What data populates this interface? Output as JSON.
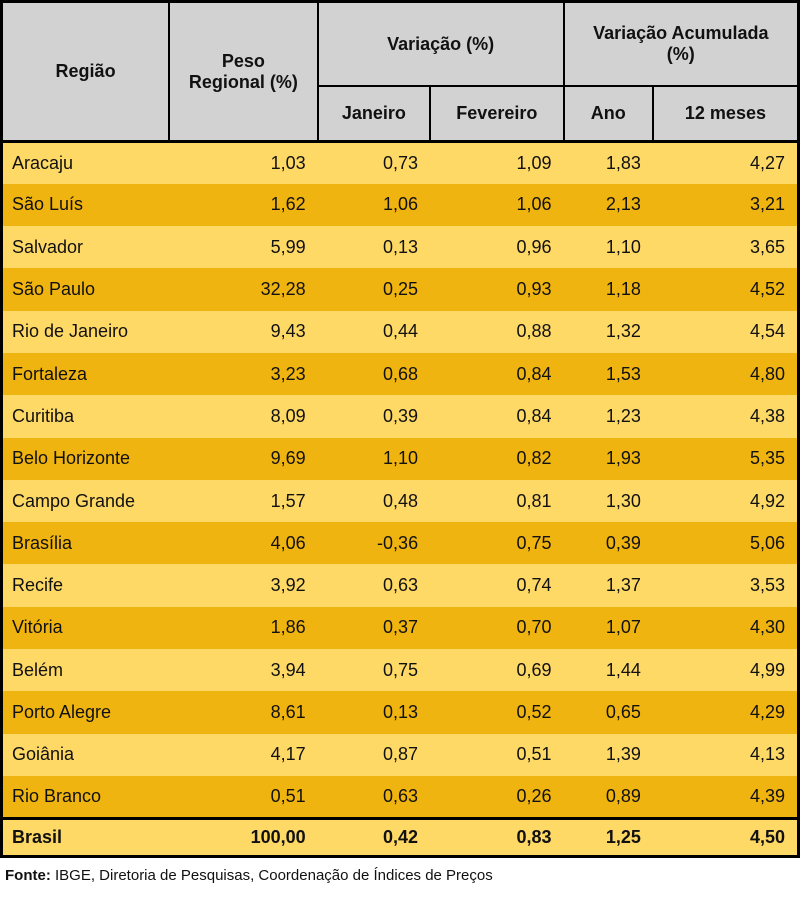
{
  "table": {
    "header": {
      "region": "Região",
      "weight": "Peso\nRegional (%)",
      "variation_group": "Variação (%)",
      "accumulated_group": "Variação Acumulada\n(%)",
      "sub": [
        "Janeiro",
        "Fevereiro",
        "Ano",
        "12 meses"
      ]
    },
    "rows": [
      {
        "name": "Aracaju",
        "values": [
          "1,03",
          "0,73",
          "1,09",
          "1,83",
          "4,27"
        ]
      },
      {
        "name": "São Luís",
        "values": [
          "1,62",
          "1,06",
          "1,06",
          "2,13",
          "3,21"
        ]
      },
      {
        "name": "Salvador",
        "values": [
          "5,99",
          "0,13",
          "0,96",
          "1,10",
          "3,65"
        ]
      },
      {
        "name": "São Paulo",
        "values": [
          "32,28",
          "0,25",
          "0,93",
          "1,18",
          "4,52"
        ]
      },
      {
        "name": "Rio de Janeiro",
        "values": [
          "9,43",
          "0,44",
          "0,88",
          "1,32",
          "4,54"
        ]
      },
      {
        "name": "Fortaleza",
        "values": [
          "3,23",
          "0,68",
          "0,84",
          "1,53",
          "4,80"
        ]
      },
      {
        "name": "Curitiba",
        "values": [
          "8,09",
          "0,39",
          "0,84",
          "1,23",
          "4,38"
        ]
      },
      {
        "name": "Belo Horizonte",
        "values": [
          "9,69",
          "1,10",
          "0,82",
          "1,93",
          "5,35"
        ]
      },
      {
        "name": "Campo Grande",
        "values": [
          "1,57",
          "0,48",
          "0,81",
          "1,30",
          "4,92"
        ]
      },
      {
        "name": "Brasília",
        "values": [
          "4,06",
          "-0,36",
          "0,75",
          "0,39",
          "5,06"
        ]
      },
      {
        "name": "Recife",
        "values": [
          "3,92",
          "0,63",
          "0,74",
          "1,37",
          "3,53"
        ]
      },
      {
        "name": "Vitória",
        "values": [
          "1,86",
          "0,37",
          "0,70",
          "1,07",
          "4,30"
        ]
      },
      {
        "name": "Belém",
        "values": [
          "3,94",
          "0,75",
          "0,69",
          "1,44",
          "4,99"
        ]
      },
      {
        "name": "Porto Alegre",
        "values": [
          "8,61",
          "0,13",
          "0,52",
          "0,65",
          "4,29"
        ]
      },
      {
        "name": "Goiânia",
        "values": [
          "4,17",
          "0,87",
          "0,51",
          "1,39",
          "4,13"
        ]
      },
      {
        "name": "Rio Branco",
        "values": [
          "0,51",
          "0,63",
          "0,26",
          "0,89",
          "4,39"
        ]
      },
      {
        "name": "Brasil",
        "values": [
          "100,00",
          "0,42",
          "0,83",
          "1,25",
          "4,50"
        ],
        "total": true
      }
    ],
    "footer": {
      "label": "Fonte:",
      "text": " IBGE, Diretoria de Pesquisas, Coordenação de Índices de Preços"
    }
  },
  "colors": {
    "header_bg": "#d2d2d2",
    "row_light": "#ffd966",
    "row_dark": "#f0b410",
    "border": "#000000"
  },
  "chart_data": {
    "type": "table",
    "title": "",
    "columns": [
      "Região",
      "Peso Regional (%)",
      "Variação (%) - Janeiro",
      "Variação (%) - Fevereiro",
      "Variação Acumulada (%) - Ano",
      "Variação Acumulada (%) - 12 meses"
    ],
    "rows": [
      [
        "Aracaju",
        1.03,
        0.73,
        1.09,
        1.83,
        4.27
      ],
      [
        "São Luís",
        1.62,
        1.06,
        1.06,
        2.13,
        3.21
      ],
      [
        "Salvador",
        5.99,
        0.13,
        0.96,
        1.1,
        3.65
      ],
      [
        "São Paulo",
        32.28,
        0.25,
        0.93,
        1.18,
        4.52
      ],
      [
        "Rio de Janeiro",
        9.43,
        0.44,
        0.88,
        1.32,
        4.54
      ],
      [
        "Fortaleza",
        3.23,
        0.68,
        0.84,
        1.53,
        4.8
      ],
      [
        "Curitiba",
        8.09,
        0.39,
        0.84,
        1.23,
        4.38
      ],
      [
        "Belo Horizonte",
        9.69,
        1.1,
        0.82,
        1.93,
        5.35
      ],
      [
        "Campo Grande",
        1.57,
        0.48,
        0.81,
        1.3,
        4.92
      ],
      [
        "Brasília",
        4.06,
        -0.36,
        0.75,
        0.39,
        5.06
      ],
      [
        "Recife",
        3.92,
        0.63,
        0.74,
        1.37,
        3.53
      ],
      [
        "Vitória",
        1.86,
        0.37,
        0.7,
        1.07,
        4.3
      ],
      [
        "Belém",
        3.94,
        0.75,
        0.69,
        1.44,
        4.99
      ],
      [
        "Porto Alegre",
        8.61,
        0.13,
        0.52,
        0.65,
        4.29
      ],
      [
        "Goiânia",
        4.17,
        0.87,
        0.51,
        1.39,
        4.13
      ],
      [
        "Rio Branco",
        0.51,
        0.63,
        0.26,
        0.89,
        4.39
      ],
      [
        "Brasil",
        100.0,
        0.42,
        0.83,
        1.25,
        4.5
      ]
    ],
    "source": "Fonte: IBGE, Diretoria de Pesquisas, Coordenação de Índices de Preços"
  }
}
